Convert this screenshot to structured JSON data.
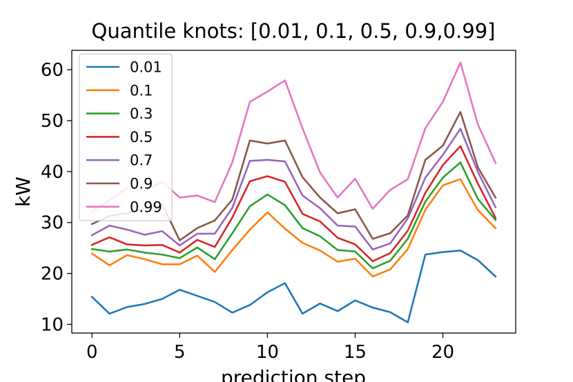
{
  "chart_data": {
    "type": "line",
    "title": "Quantile knots: [0.01, 0.1, 0.5, 0.9,0.99]",
    "xlabel": "prediction step",
    "ylabel": "kW",
    "xlim": [
      -1.15,
      24.15
    ],
    "ylim": [
      8.3,
      63.8
    ],
    "xticks": [
      0,
      5,
      10,
      15,
      20
    ],
    "yticks": [
      10,
      20,
      30,
      40,
      50,
      60
    ],
    "grid": false,
    "legend_position": "top-left",
    "x": [
      0,
      1,
      2,
      3,
      4,
      5,
      6,
      7,
      8,
      9,
      10,
      11,
      12,
      13,
      14,
      15,
      16,
      17,
      18,
      19,
      20,
      21,
      22,
      23
    ],
    "series": [
      {
        "name": "0.01",
        "color": "#1f77b4",
        "values": [
          15.4,
          12.1,
          13.4,
          14.0,
          15.0,
          16.8,
          15.6,
          14.4,
          12.3,
          13.8,
          16.3,
          18.1,
          12.1,
          14.1,
          12.6,
          14.7,
          13.3,
          12.4,
          10.4,
          23.7,
          24.2,
          24.5,
          22.6,
          19.4
        ]
      },
      {
        "name": "0.1",
        "color": "#ff7f0e",
        "values": [
          23.9,
          21.6,
          23.6,
          22.8,
          21.8,
          21.8,
          23.5,
          20.3,
          24.6,
          28.6,
          32.0,
          28.8,
          26.0,
          24.5,
          22.3,
          22.9,
          19.4,
          20.8,
          24.8,
          32.5,
          37.3,
          38.5,
          32.4,
          28.9
        ]
      },
      {
        "name": "0.3",
        "color": "#2ca02c",
        "values": [
          24.8,
          24.3,
          24.7,
          24.1,
          23.7,
          23.0,
          25.1,
          22.8,
          27.9,
          33.2,
          35.5,
          33.4,
          28.9,
          27.3,
          24.6,
          24.3,
          21.0,
          22.5,
          26.8,
          34.1,
          38.8,
          41.8,
          34.6,
          30.5
        ]
      },
      {
        "name": "0.5",
        "color": "#d62728",
        "values": [
          25.6,
          27.1,
          25.7,
          25.5,
          25.6,
          24.1,
          26.6,
          25.2,
          31.0,
          38.1,
          39.1,
          38.0,
          31.7,
          30.2,
          27.0,
          25.7,
          22.4,
          24.0,
          28.4,
          35.8,
          41.3,
          45.0,
          37.6,
          30.9
        ]
      },
      {
        "name": "0.7",
        "color": "#9467bd",
        "values": [
          27.5,
          29.4,
          28.6,
          27.6,
          28.3,
          25.5,
          27.8,
          27.8,
          32.9,
          42.1,
          42.3,
          42.0,
          35.3,
          32.8,
          29.4,
          29.2,
          24.7,
          25.9,
          30.8,
          38.8,
          43.3,
          48.4,
          39.9,
          33.0
        ]
      },
      {
        "name": "0.9",
        "color": "#8c564b",
        "values": [
          29.7,
          31.3,
          31.8,
          32.7,
          33.6,
          26.5,
          28.9,
          30.4,
          34.5,
          46.1,
          45.5,
          46.1,
          38.9,
          34.9,
          31.8,
          32.6,
          26.8,
          27.9,
          31.4,
          42.3,
          45.1,
          51.7,
          40.8,
          34.9
        ]
      },
      {
        "name": "0.99",
        "color": "#e377c2",
        "values": [
          32.2,
          34.3,
          36.8,
          36.2,
          38.0,
          34.9,
          35.3,
          34.0,
          41.8,
          53.7,
          55.7,
          57.9,
          48.5,
          39.8,
          34.9,
          38.6,
          32.7,
          36.4,
          38.5,
          48.5,
          53.7,
          61.4,
          49.2,
          41.7
        ]
      }
    ]
  }
}
